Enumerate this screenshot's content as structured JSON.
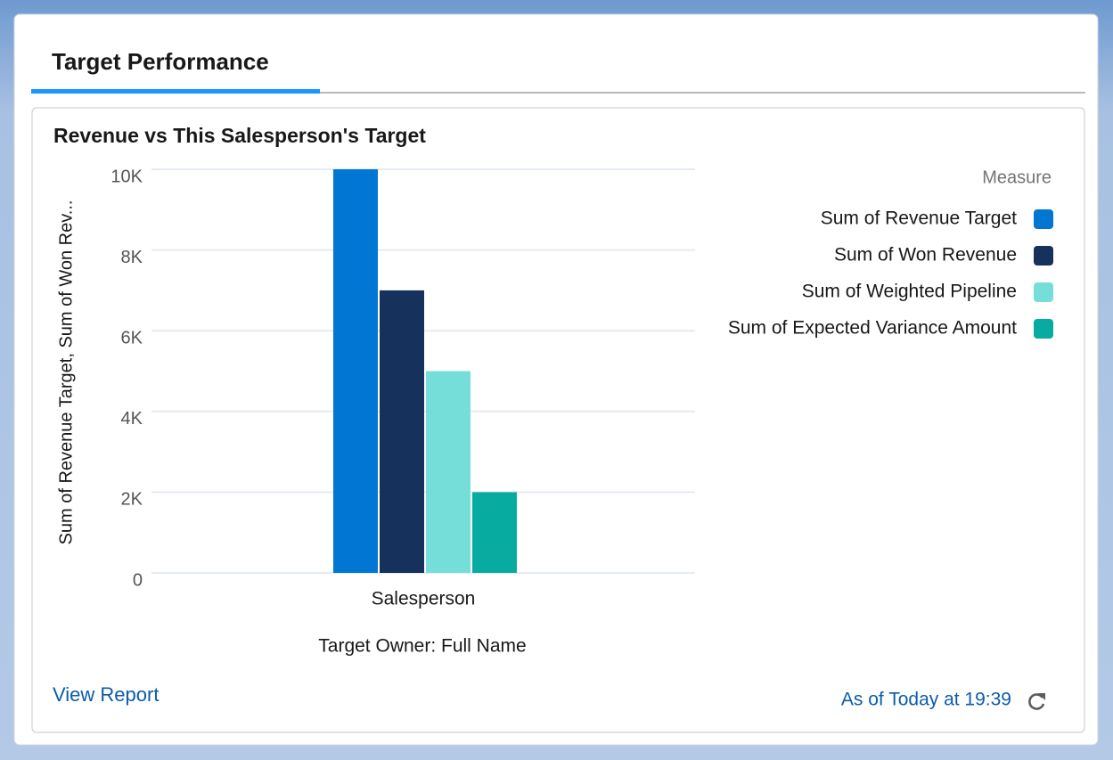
{
  "tab": {
    "title": "Target Performance"
  },
  "chart_data": {
    "type": "bar",
    "title": "Revenue vs This Salesperson's Target",
    "y_label": "Sum of Revenue Target, Sum of Won Rev...",
    "x_label": "Target Owner: Full Name",
    "categories": [
      "Salesperson"
    ],
    "legend_title": "Measure",
    "series": [
      {
        "name": "Sum of Revenue Target",
        "color": "#0176d3",
        "values": [
          10000
        ]
      },
      {
        "name": "Sum of Won Revenue",
        "color": "#16325c",
        "values": [
          7000
        ]
      },
      {
        "name": "Sum of Weighted Pipeline",
        "color": "#76ded9",
        "values": [
          5000
        ]
      },
      {
        "name": "Sum of Expected Variance Amount",
        "color": "#08aba0",
        "values": [
          2000
        ]
      }
    ],
    "ylim": [
      0,
      10000
    ],
    "yticks": [
      0,
      {
        "value": 2000,
        "label": "2K"
      },
      {
        "value": 4000,
        "label": "4K"
      },
      {
        "value": 6000,
        "label": "6K"
      },
      {
        "value": 8000,
        "label": "8K"
      },
      {
        "value": 10000,
        "label": "10K"
      }
    ],
    "grid": true
  },
  "footer": {
    "link": "View Report",
    "timestamp": "As of Today at 19:39"
  }
}
